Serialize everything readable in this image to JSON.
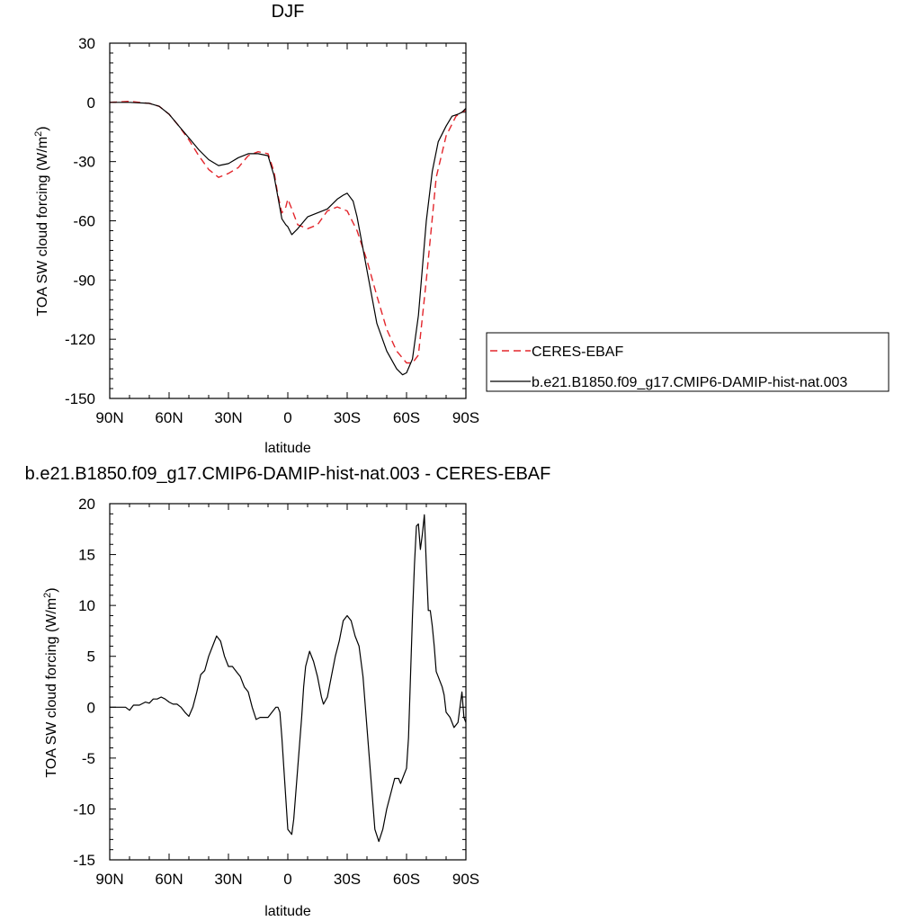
{
  "chart_data": [
    {
      "type": "line",
      "title": "DJF",
      "xlabel": "latitude",
      "ylabel": "TOA SW cloud forcing (W/m2)",
      "ylabel_text": "TOA SW cloud forcing (W/m",
      "ylabel_sup": "2",
      "ylabel_close": ")",
      "xlim": [
        90,
        -90
      ],
      "ylim": [
        -150,
        30
      ],
      "x_ticks": [
        90,
        60,
        30,
        0,
        -30,
        -60,
        -90
      ],
      "x_tick_labels": [
        "90N",
        "60N",
        "30N",
        "0",
        "30S",
        "60S",
        "90S"
      ],
      "y_ticks": [
        30,
        0,
        -30,
        -60,
        -90,
        -120,
        -150
      ],
      "y_tick_labels": [
        "30",
        "0",
        "-30",
        "-60",
        "-90",
        "-120",
        "-150"
      ],
      "legend_position": "right",
      "series": [
        {
          "name": "CERES-EBAF",
          "color": "#e3262c",
          "dash": "dashed",
          "points": [
            [
              90,
              0
            ],
            [
              80,
              0.5
            ],
            [
              70,
              -0.5
            ],
            [
              65,
              -2
            ],
            [
              60,
              -6
            ],
            [
              55,
              -12
            ],
            [
              50,
              -19
            ],
            [
              45,
              -27
            ],
            [
              40,
              -34
            ],
            [
              35,
              -38
            ],
            [
              30,
              -36
            ],
            [
              25,
              -33
            ],
            [
              20,
              -27
            ],
            [
              15,
              -25
            ],
            [
              10,
              -26
            ],
            [
              7,
              -35
            ],
            [
              5,
              -47
            ],
            [
              3,
              -56
            ],
            [
              1,
              -53
            ],
            [
              0,
              -49
            ],
            [
              -2,
              -54
            ],
            [
              -5,
              -62
            ],
            [
              -10,
              -64
            ],
            [
              -15,
              -62
            ],
            [
              -20,
              -55
            ],
            [
              -25,
              -53
            ],
            [
              -30,
              -55
            ],
            [
              -35,
              -65
            ],
            [
              -40,
              -80
            ],
            [
              -45,
              -98
            ],
            [
              -50,
              -115
            ],
            [
              -55,
              -126
            ],
            [
              -60,
              -132
            ],
            [
              -63,
              -132
            ],
            [
              -66,
              -128
            ],
            [
              -70,
              -90
            ],
            [
              -75,
              -38
            ],
            [
              -80,
              -17
            ],
            [
              -85,
              -7
            ],
            [
              -88,
              -5
            ],
            [
              -90,
              -4
            ]
          ]
        },
        {
          "name": "b.e21.B1850.f09_g17.CMIP6-DAMIP-hist-nat.003",
          "color": "#000000",
          "dash": "solid",
          "points": [
            [
              90,
              0
            ],
            [
              80,
              0
            ],
            [
              70,
              -0.5
            ],
            [
              65,
              -2
            ],
            [
              60,
              -6
            ],
            [
              55,
              -12
            ],
            [
              50,
              -18
            ],
            [
              45,
              -24
            ],
            [
              40,
              -29
            ],
            [
              35,
              -32
            ],
            [
              30,
              -31
            ],
            [
              25,
              -28
            ],
            [
              20,
              -26
            ],
            [
              15,
              -26
            ],
            [
              10,
              -27
            ],
            [
              7,
              -37
            ],
            [
              5,
              -48
            ],
            [
              3,
              -59
            ],
            [
              1,
              -62
            ],
            [
              0,
              -63
            ],
            [
              -2,
              -67
            ],
            [
              -5,
              -64
            ],
            [
              -10,
              -58
            ],
            [
              -15,
              -56
            ],
            [
              -20,
              -54
            ],
            [
              -25,
              -49
            ],
            [
              -28,
              -47
            ],
            [
              -30,
              -46
            ],
            [
              -33,
              -50
            ],
            [
              -35,
              -58
            ],
            [
              -40,
              -85
            ],
            [
              -45,
              -112
            ],
            [
              -50,
              -126
            ],
            [
              -55,
              -135
            ],
            [
              -58,
              -138
            ],
            [
              -60,
              -137
            ],
            [
              -63,
              -130
            ],
            [
              -66,
              -108
            ],
            [
              -70,
              -60
            ],
            [
              -73,
              -35
            ],
            [
              -76,
              -20
            ],
            [
              -80,
              -12
            ],
            [
              -83,
              -7
            ],
            [
              -86,
              -6
            ],
            [
              -88,
              -5
            ],
            [
              -90,
              -3
            ]
          ]
        }
      ]
    },
    {
      "type": "line",
      "title": "b.e21.B1850.f09_g17.CMIP6-DAMIP-hist-nat.003 - CERES-EBAF",
      "xlabel": "latitude",
      "ylabel": "TOA SW cloud forcing (W/m2)",
      "ylabel_text": "TOA SW cloud forcing (W/m",
      "ylabel_sup": "2",
      "ylabel_close": ")",
      "xlim": [
        90,
        -90
      ],
      "ylim": [
        -15,
        20
      ],
      "x_ticks": [
        90,
        60,
        30,
        0,
        -30,
        -60,
        -90
      ],
      "x_tick_labels": [
        "90N",
        "60N",
        "30N",
        "0",
        "30S",
        "60S",
        "90S"
      ],
      "y_ticks": [
        20,
        15,
        10,
        5,
        0,
        -5,
        -10,
        -15
      ],
      "y_tick_labels": [
        "20",
        "15",
        "10",
        "5",
        "0",
        "-5",
        "-10",
        "-15"
      ],
      "series": [
        {
          "name": "",
          "color": "#000000",
          "dash": "solid",
          "points": [
            [
              90,
              0
            ],
            [
              82,
              0
            ],
            [
              80,
              -0.3
            ],
            [
              78,
              0.2
            ],
            [
              75,
              0.2
            ],
            [
              72,
              0.5
            ],
            [
              70,
              0.4
            ],
            [
              68,
              0.8
            ],
            [
              66,
              0.8
            ],
            [
              64,
              1
            ],
            [
              62,
              0.8
            ],
            [
              60,
              0.5
            ],
            [
              58,
              0.3
            ],
            [
              56,
              0.3
            ],
            [
              54,
              0
            ],
            [
              52,
              -0.5
            ],
            [
              50,
              -0.9
            ],
            [
              48,
              0
            ],
            [
              46,
              1.5
            ],
            [
              44,
              3.2
            ],
            [
              42,
              3.6
            ],
            [
              40,
              5
            ],
            [
              38,
              6
            ],
            [
              36,
              7
            ],
            [
              34,
              6.5
            ],
            [
              32,
              5
            ],
            [
              30,
              4
            ],
            [
              28,
              4
            ],
            [
              26,
              3.5
            ],
            [
              24,
              3
            ],
            [
              22,
              2
            ],
            [
              20,
              1.5
            ],
            [
              18,
              0
            ],
            [
              16,
              -1.2
            ],
            [
              14,
              -1
            ],
            [
              12,
              -1
            ],
            [
              10,
              -1
            ],
            [
              8,
              -0.5
            ],
            [
              6,
              0
            ],
            [
              5,
              0
            ],
            [
              4,
              -0.5
            ],
            [
              3,
              -3
            ],
            [
              2,
              -6
            ],
            [
              1,
              -9
            ],
            [
              0,
              -12
            ],
            [
              -2,
              -12.5
            ],
            [
              -3,
              -11
            ],
            [
              -5,
              -6
            ],
            [
              -7,
              -1
            ],
            [
              -8,
              2
            ],
            [
              -9,
              4
            ],
            [
              -11,
              5.5
            ],
            [
              -13,
              4.5
            ],
            [
              -15,
              3
            ],
            [
              -17,
              1
            ],
            [
              -18,
              0.3
            ],
            [
              -20,
              1
            ],
            [
              -22,
              3
            ],
            [
              -24,
              5
            ],
            [
              -26,
              6.5
            ],
            [
              -28,
              8.5
            ],
            [
              -30,
              9
            ],
            [
              -32,
              8.5
            ],
            [
              -34,
              7
            ],
            [
              -36,
              6
            ],
            [
              -38,
              3
            ],
            [
              -40,
              -2
            ],
            [
              -42,
              -7
            ],
            [
              -44,
              -12
            ],
            [
              -46,
              -13.2
            ],
            [
              -48,
              -12
            ],
            [
              -50,
              -10
            ],
            [
              -52,
              -8.5
            ],
            [
              -54,
              -7
            ],
            [
              -56,
              -7
            ],
            [
              -57,
              -7.5
            ],
            [
              -58,
              -7
            ],
            [
              -60,
              -6
            ],
            [
              -61,
              -3
            ],
            [
              -62,
              3
            ],
            [
              -63,
              9
            ],
            [
              -64,
              14
            ],
            [
              -65,
              17.8
            ],
            [
              -66,
              18
            ],
            [
              -67,
              15.5
            ],
            [
              -68,
              17
            ],
            [
              -69,
              18.9
            ],
            [
              -70,
              14
            ],
            [
              -71,
              9.5
            ],
            [
              -72,
              9.5
            ],
            [
              -73,
              8
            ],
            [
              -74,
              6
            ],
            [
              -75,
              3.5
            ],
            [
              -76,
              3
            ],
            [
              -78,
              2
            ],
            [
              -79,
              1.2
            ],
            [
              -80,
              -0.5
            ],
            [
              -82,
              -1
            ],
            [
              -84,
              -2
            ],
            [
              -86,
              -1.5
            ],
            [
              -87,
              0
            ],
            [
              -88,
              1.5
            ],
            [
              -89,
              -1
            ],
            [
              -90,
              -1.5
            ]
          ]
        }
      ]
    }
  ]
}
